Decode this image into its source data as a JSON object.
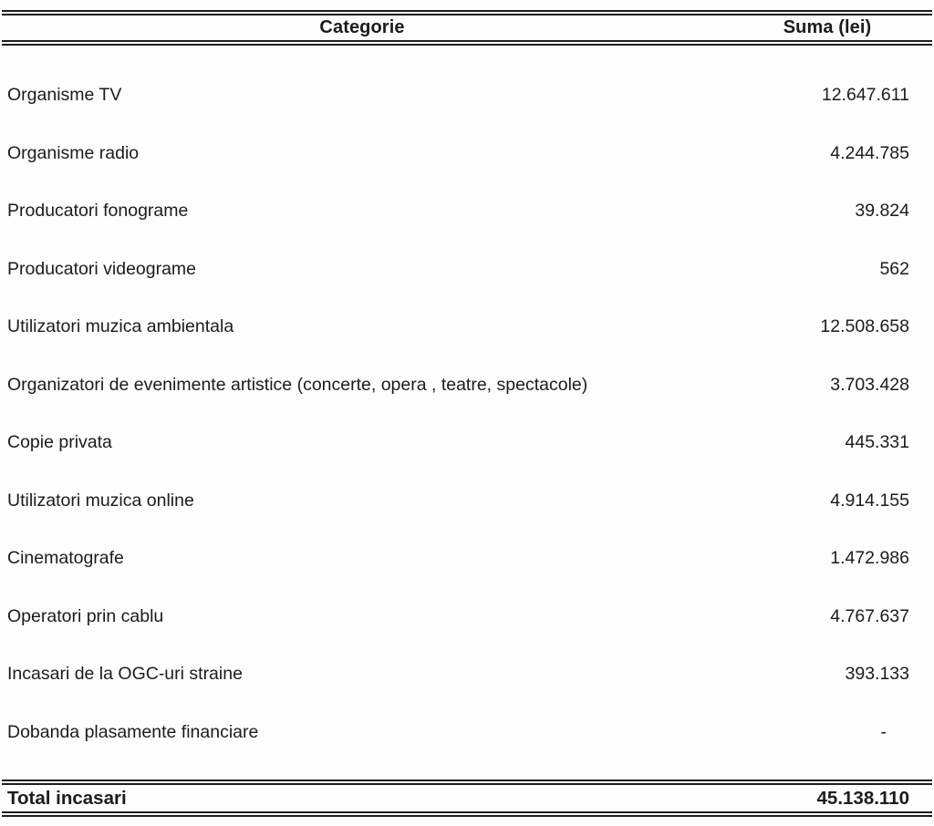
{
  "page": {
    "background": "#fdfdfd",
    "text_color": "#1c1c1c",
    "rule_color": "#1e1e1e"
  },
  "table": {
    "headers": {
      "category": "Categorie",
      "amount": "Suma (lei)"
    },
    "rows": [
      {
        "category": "Organisme TV",
        "amount": "12.647.611"
      },
      {
        "category": "Organisme radio",
        "amount": "4.244.785"
      },
      {
        "category": "Producatori fonograme",
        "amount": "39.824"
      },
      {
        "category": "Producatori videograme",
        "amount": "562"
      },
      {
        "category": "Utilizatori muzica ambientala",
        "amount": "12.508.658"
      },
      {
        "category": "Organizatori de evenimente artistice (concerte, opera , teatre, spectacole)",
        "amount": "3.703.428"
      },
      {
        "category": "Copie privata",
        "amount": "445.331"
      },
      {
        "category": "Utilizatori muzica online",
        "amount": "4.914.155"
      },
      {
        "category": "Cinematografe",
        "amount": "1.472.986"
      },
      {
        "category": "Operatori prin cablu",
        "amount": "4.767.637"
      },
      {
        "category": "Incasari de la OGC-uri straine",
        "amount": "393.133"
      },
      {
        "category": "Dobanda plasamente financiare",
        "amount": "-"
      }
    ],
    "total": {
      "label": "Total incasari",
      "amount": "45.138.110"
    }
  }
}
